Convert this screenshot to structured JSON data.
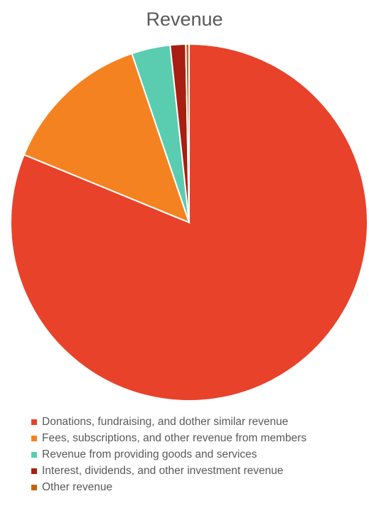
{
  "chart_data": {
    "type": "pie",
    "title": "Revenue",
    "start_angle_deg": 0,
    "direction": "clockwise",
    "legend_position": "bottom",
    "slices": [
      {
        "name": "Donations, fundraising, and dother similar revenue",
        "value": 81.2,
        "color": "#E8422A"
      },
      {
        "name": "Fees, subscriptions, and other revenue from members",
        "value": 13.6,
        "color": "#F58220"
      },
      {
        "name": "Revenue from providing goods and services",
        "value": 3.5,
        "color": "#5ACDB1"
      },
      {
        "name": "Interest, dividends, and other investment revenue",
        "value": 1.4,
        "color": "#A81E12"
      },
      {
        "name": "Other revenue",
        "value": 0.3,
        "color": "#C0650F"
      }
    ]
  }
}
